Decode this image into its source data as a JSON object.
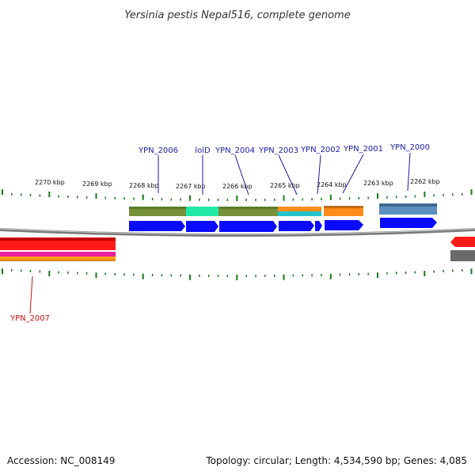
{
  "title": "Yersinia pestis Nepal516, complete genome",
  "accession": "Accession: NC_008149",
  "summary": "Topology: circular; Length: 4,534,590 bp; Genes: 4,085",
  "colors": {
    "label_forward": "#1a1aa6",
    "label_reverse": "#cc1111",
    "tick": "#1a7a1a",
    "backbone": "#7a7a7a"
  },
  "ruler": [
    {
      "label": "2270 kbp"
    },
    {
      "label": "2269 kbp"
    },
    {
      "label": "2268 kbp"
    },
    {
      "label": "2267 kbp"
    },
    {
      "label": "2266 kbp"
    },
    {
      "label": "2265 kbp"
    },
    {
      "label": "2264 kbp"
    },
    {
      "label": "2263 kbp"
    },
    {
      "label": "2262 kbp"
    }
  ],
  "genes": [
    {
      "label": "YPN_2006",
      "strand": "+",
      "color": "#1a1aa6"
    },
    {
      "label": "lolD",
      "strand": "+",
      "color": "#1a1aa6"
    },
    {
      "label": "YPN_2004",
      "strand": "+",
      "color": "#1a1aa6"
    },
    {
      "label": "YPN_2003",
      "strand": "+",
      "color": "#1a1aa6"
    },
    {
      "label": "YPN_2002",
      "strand": "+",
      "color": "#1a1aa6"
    },
    {
      "label": "YPN_2001",
      "strand": "+",
      "color": "#1a1aa6"
    },
    {
      "label": "YPN_2000",
      "strand": "+",
      "color": "#1a1aa6"
    },
    {
      "label": "YPN_2007",
      "strand": "-",
      "color": "#cc1111"
    }
  ]
}
